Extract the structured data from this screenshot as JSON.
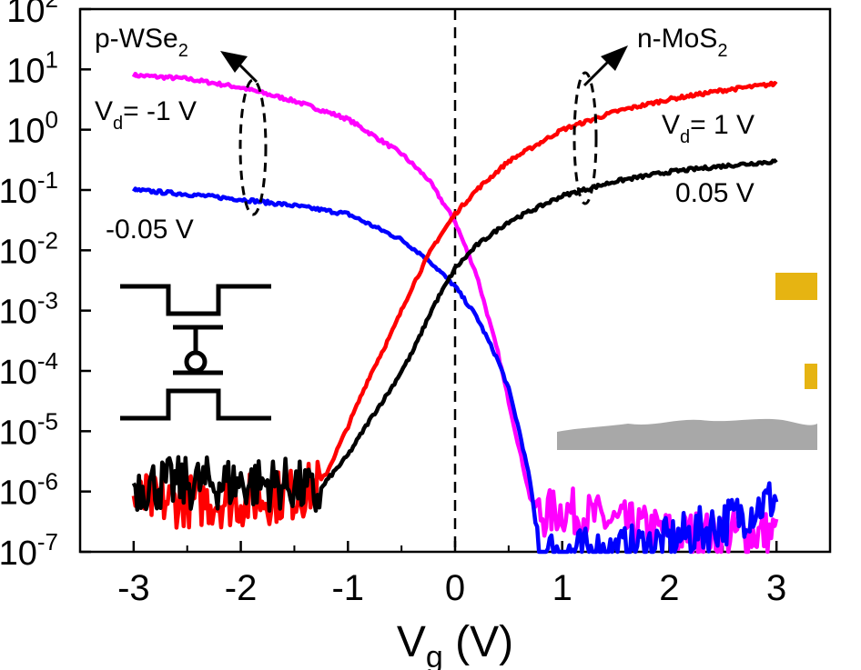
{
  "chart_data": {
    "type": "line",
    "title": "",
    "xlabel": "V",
    "xlabel_sub": "g",
    "xlabel_unit": " (V)",
    "ylabel": "",
    "xlim": [
      -3.5,
      3.5
    ],
    "ylim_log10": [
      -7,
      2
    ],
    "y_scale": "log",
    "x_ticks": [
      -3,
      -2,
      -1,
      0,
      1,
      2,
      3
    ],
    "x_tick_labels": [
      "-3",
      "-2",
      "-1",
      "0",
      "1",
      "2",
      "3"
    ],
    "y_ticks_exp": [
      -7,
      -6,
      -5,
      -4,
      -3,
      -2,
      -1,
      0,
      1,
      2
    ],
    "y_tick_base": "10",
    "y_tick_exp_labels": [
      "-7",
      "-6",
      "-5",
      "-4",
      "-3",
      "-2",
      "-1",
      "0",
      "1",
      "2"
    ],
    "series": [
      {
        "color": "#ff00ff",
        "x": [
          -3.0,
          -2.5,
          -2.0,
          -1.5,
          -1.0,
          -0.5,
          -0.25,
          0.0,
          0.2,
          0.4,
          0.6,
          0.7,
          0.8,
          1.0,
          1.5,
          2.0,
          2.5,
          3.0
        ],
        "y": [
          8,
          7,
          5,
          3,
          1.5,
          0.4,
          0.15,
          0.03,
          0.004,
          0.0002,
          5e-06,
          8e-07,
          4e-07,
          5e-07,
          3e-07,
          2e-07,
          2e-07,
          2e-07
        ],
        "noise": "high_x"
      },
      {
        "color": "#0000ff",
        "x": [
          -3.0,
          -2.5,
          -2.0,
          -1.5,
          -1.0,
          -0.5,
          -0.25,
          0.0,
          0.2,
          0.4,
          0.5,
          0.6,
          0.7,
          0.75,
          0.8,
          1.0,
          1.5,
          2.0,
          2.5,
          3.0
        ],
        "y": [
          0.1,
          0.085,
          0.07,
          0.055,
          0.04,
          0.015,
          0.007,
          0.0025,
          0.0008,
          0.00015,
          5e-05,
          1e-05,
          1.5e-06,
          3e-07,
          1e-07,
          1e-07,
          1e-07,
          1.5e-07,
          3e-07,
          8e-07
        ],
        "noise": "high_x"
      },
      {
        "color": "#ff0000",
        "x": [
          -3.0,
          -2.0,
          -1.5,
          -1.3,
          -1.2,
          -1.0,
          -0.8,
          -0.6,
          -0.4,
          -0.2,
          0.0,
          0.2,
          0.5,
          1.0,
          1.5,
          2.0,
          2.5,
          3.0
        ],
        "y": [
          7e-07,
          7e-07,
          9e-07,
          1.2e-06,
          2e-06,
          1.2e-05,
          8e-05,
          0.0004,
          0.0025,
          0.012,
          0.04,
          0.1,
          0.3,
          1.0,
          2.0,
          3.2,
          4.5,
          5.8
        ],
        "noise": "low_x"
      },
      {
        "color": "#000000",
        "x": [
          -3.0,
          -2.0,
          -1.5,
          -1.3,
          -1.2,
          -1.0,
          -0.8,
          -0.6,
          -0.4,
          -0.2,
          0.0,
          0.2,
          0.5,
          1.0,
          1.5,
          2.0,
          2.5,
          3.0
        ],
        "y": [
          1.3e-06,
          1.4e-06,
          1.3e-06,
          8e-07,
          1.5e-06,
          4e-06,
          1.5e-05,
          5e-05,
          0.0002,
          0.0012,
          0.005,
          0.012,
          0.03,
          0.08,
          0.14,
          0.2,
          0.25,
          0.3
        ],
        "noise": "low_x"
      }
    ],
    "annotations": {
      "p_label": "p-WSe",
      "p_sub": "2",
      "n_label": "n-MoS",
      "n_sub": "2",
      "vd_left_prefix": "V",
      "vd_left_sub": "d",
      "vd_left_value": "= -1 V",
      "left_low": "-0.05 V",
      "vd_right_prefix": "V",
      "vd_right_sub": "d",
      "vd_right_value": "= 1 V",
      "right_low": "0.05 V"
    },
    "reference_line_x": 0,
    "grid": false,
    "legend": "none"
  }
}
